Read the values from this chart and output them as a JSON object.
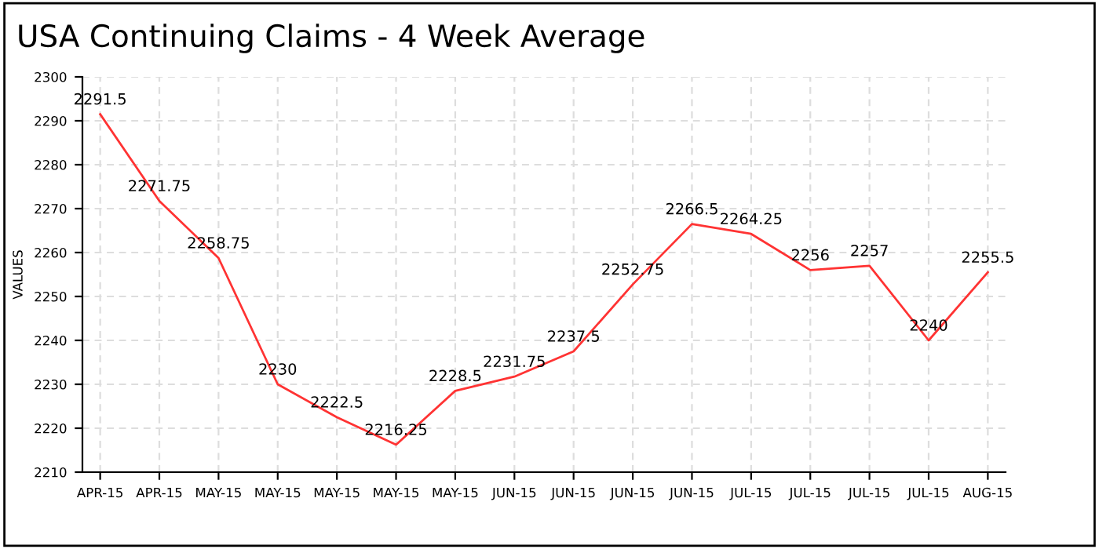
{
  "chart_data": {
    "type": "line",
    "title": "USA Continuing Claims - 4 Week Average",
    "ylabel": "VALUES",
    "categories": [
      "APR-15",
      "APR-15",
      "MAY-15",
      "MAY-15",
      "MAY-15",
      "MAY-15",
      "MAY-15",
      "JUN-15",
      "JUN-15",
      "JUN-15",
      "JUN-15",
      "JUL-15",
      "JUL-15",
      "JUL-15",
      "JUL-15",
      "AUG-15"
    ],
    "series": [
      {
        "color": "#ff3333",
        "values": [
          2291.5,
          2271.75,
          2258.75,
          2230,
          2222.5,
          2216.25,
          2228.5,
          2231.75,
          2237.5,
          2252.75,
          2266.5,
          2264.25,
          2256,
          2257,
          2240,
          2255.5
        ]
      }
    ],
    "ylim": [
      2210,
      2300
    ],
    "yticks": [
      2210,
      2220,
      2230,
      2240,
      2250,
      2260,
      2270,
      2280,
      2290,
      2300
    ],
    "grid": true,
    "data_labels": true,
    "marker": "none",
    "line_style": "solid",
    "legend": false
  }
}
